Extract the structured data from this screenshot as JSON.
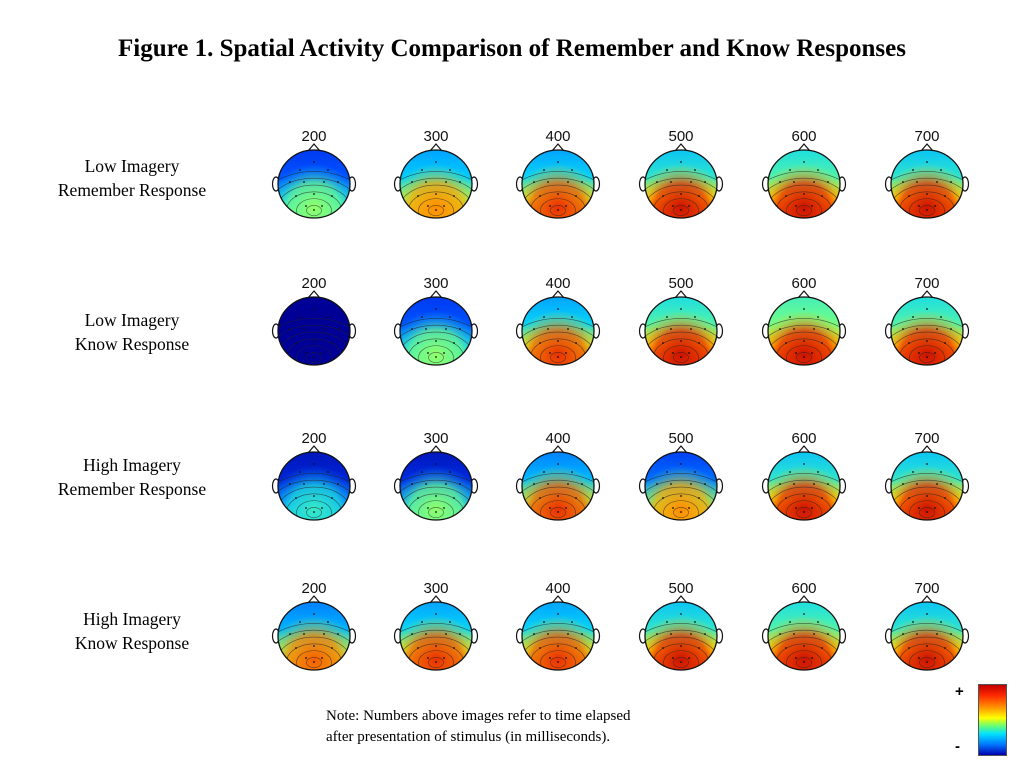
{
  "figure": {
    "title": "Figure 1.  Spatial Activity Comparison of Remember and Know Responses",
    "rows": [
      {
        "label_line1": "Low Imagery",
        "label_line2": "Remember Response",
        "posterior": [
          0.55,
          0.8,
          0.9,
          0.95,
          0.95,
          0.95
        ],
        "frontal": [
          0.15,
          0.3,
          0.3,
          0.35,
          0.4,
          0.35
        ]
      },
      {
        "label_line1": "Low Imagery",
        "label_line2": "Know Response",
        "posterior": [
          0.0,
          0.55,
          0.9,
          0.95,
          0.95,
          0.95
        ],
        "frontal": [
          0.0,
          0.15,
          0.3,
          0.4,
          0.45,
          0.4
        ]
      },
      {
        "label_line1": "High Imagery",
        "label_line2": "Remember Response",
        "posterior": [
          0.45,
          0.55,
          0.9,
          0.8,
          0.95,
          0.95
        ],
        "frontal": [
          0.05,
          0.05,
          0.25,
          0.15,
          0.35,
          0.35
        ]
      },
      {
        "label_line1": "High Imagery",
        "label_line2": "Know Response",
        "posterior": [
          0.85,
          0.9,
          0.9,
          0.95,
          0.95,
          0.95
        ],
        "frontal": [
          0.25,
          0.3,
          0.3,
          0.35,
          0.4,
          0.35
        ]
      }
    ],
    "time_labels": [
      "200",
      "300",
      "400",
      "500",
      "600",
      "700"
    ],
    "note_line1": "Note: Numbers above images refer to time elapsed",
    "note_line2": "after presentation of stimulus (in milliseconds).",
    "colorbar": {
      "plus_label": "+",
      "minus_label": "-"
    }
  }
}
